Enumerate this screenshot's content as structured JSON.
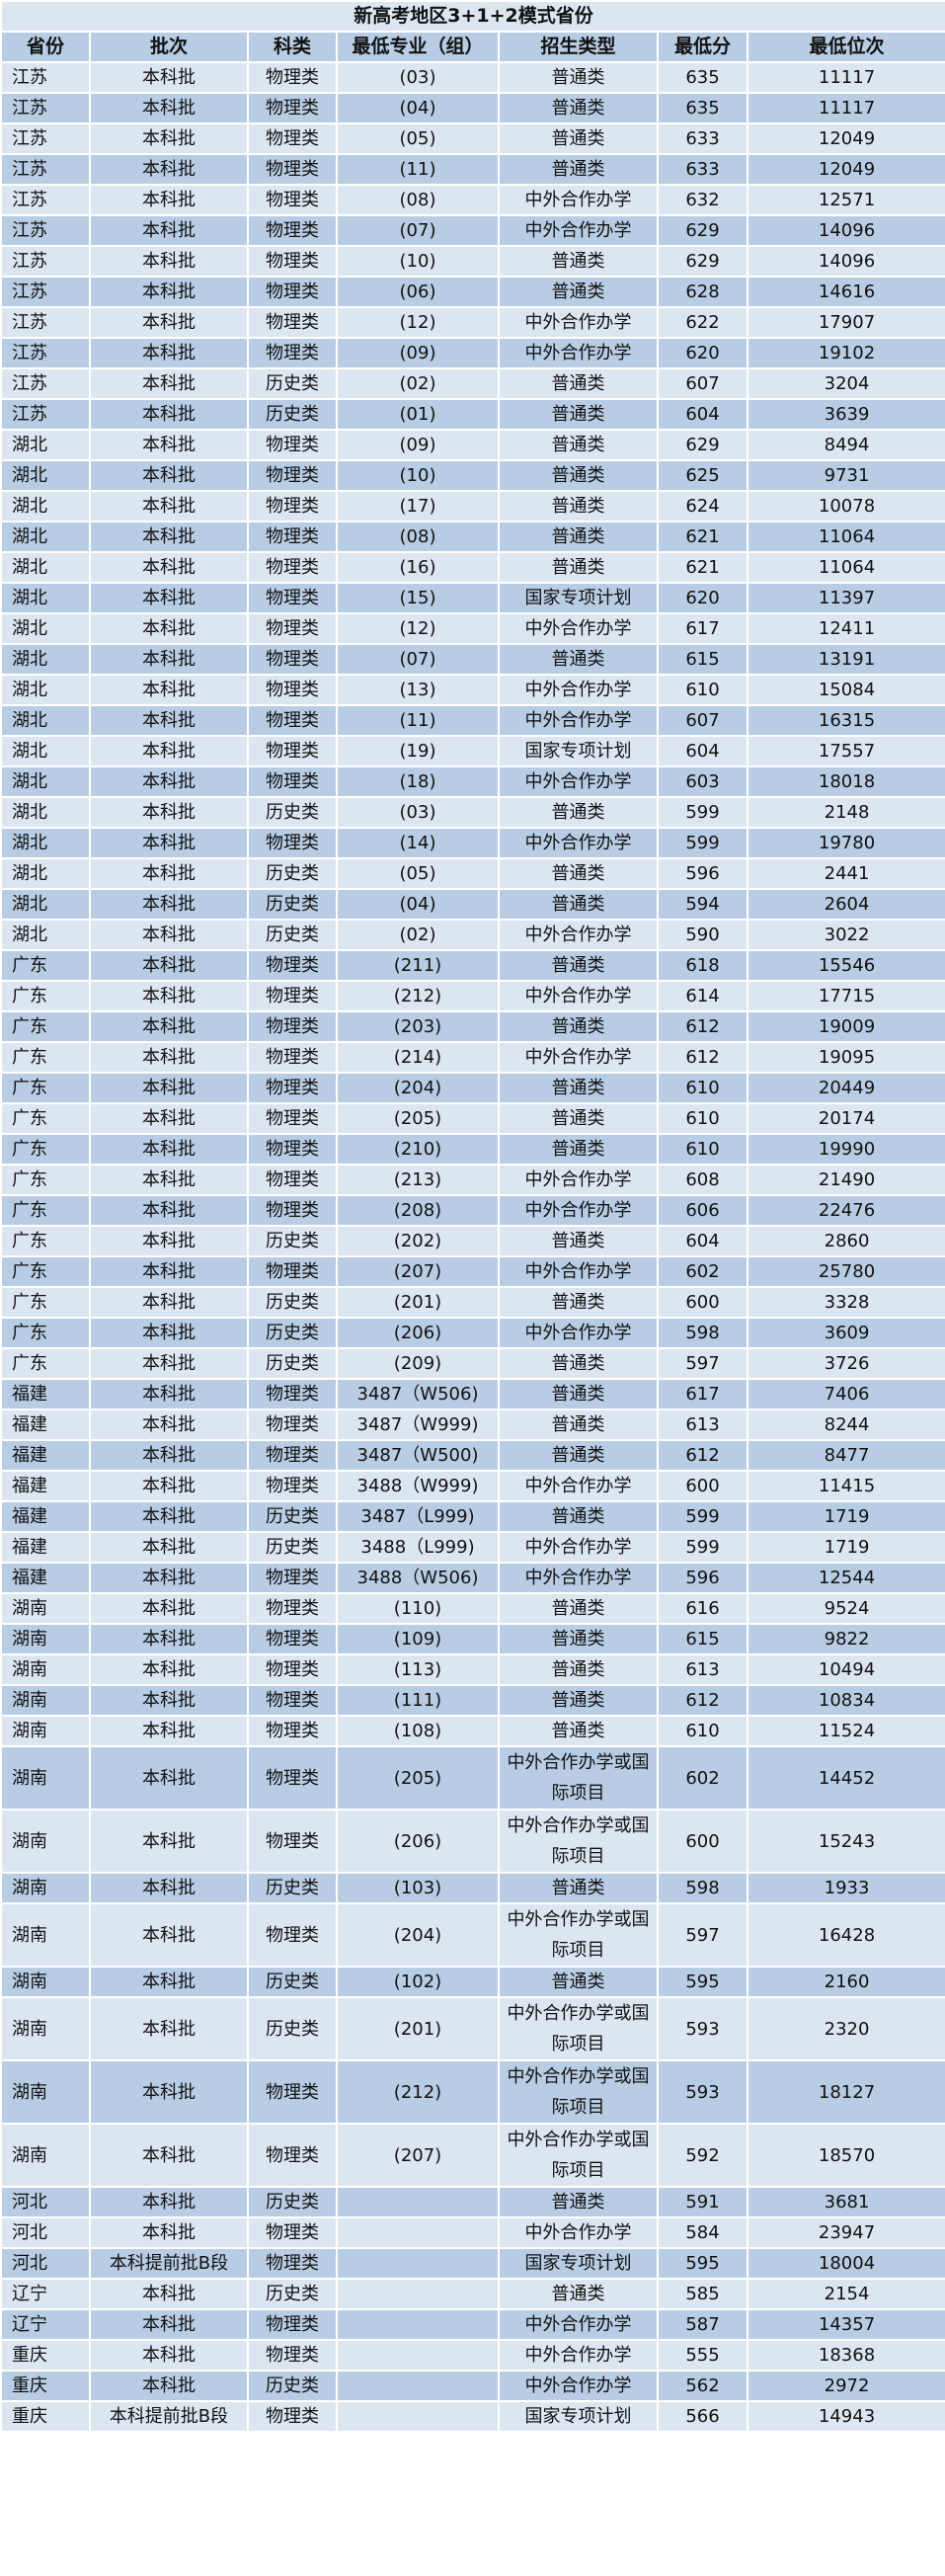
{
  "title": "新高考地区3+1+2模式省份",
  "colors": {
    "light_row": "#dce6f1",
    "dark_row": "#b8cce4"
  },
  "columns": [
    "省份",
    "批次",
    "科类",
    "最低专业（组）",
    "招生类型",
    "最低分",
    "最低位次"
  ],
  "rows": [
    [
      "江苏",
      "本科批",
      "物理类",
      "(03)",
      "普通类",
      "635",
      "11117"
    ],
    [
      "江苏",
      "本科批",
      "物理类",
      "(04)",
      "普通类",
      "635",
      "11117"
    ],
    [
      "江苏",
      "本科批",
      "物理类",
      "(05)",
      "普通类",
      "633",
      "12049"
    ],
    [
      "江苏",
      "本科批",
      "物理类",
      "(11)",
      "普通类",
      "633",
      "12049"
    ],
    [
      "江苏",
      "本科批",
      "物理类",
      "(08)",
      "中外合作办学",
      "632",
      "12571"
    ],
    [
      "江苏",
      "本科批",
      "物理类",
      "(07)",
      "中外合作办学",
      "629",
      "14096"
    ],
    [
      "江苏",
      "本科批",
      "物理类",
      "(10)",
      "普通类",
      "629",
      "14096"
    ],
    [
      "江苏",
      "本科批",
      "物理类",
      "(06)",
      "普通类",
      "628",
      "14616"
    ],
    [
      "江苏",
      "本科批",
      "物理类",
      "(12)",
      "中外合作办学",
      "622",
      "17907"
    ],
    [
      "江苏",
      "本科批",
      "物理类",
      "(09)",
      "中外合作办学",
      "620",
      "19102"
    ],
    [
      "江苏",
      "本科批",
      "历史类",
      "(02)",
      "普通类",
      "607",
      "3204"
    ],
    [
      "江苏",
      "本科批",
      "历史类",
      "(01)",
      "普通类",
      "604",
      "3639"
    ],
    [
      "湖北",
      "本科批",
      "物理类",
      "(09)",
      "普通类",
      "629",
      "8494"
    ],
    [
      "湖北",
      "本科批",
      "物理类",
      "(10)",
      "普通类",
      "625",
      "9731"
    ],
    [
      "湖北",
      "本科批",
      "物理类",
      "(17)",
      "普通类",
      "624",
      "10078"
    ],
    [
      "湖北",
      "本科批",
      "物理类",
      "(08)",
      "普通类",
      "621",
      "11064"
    ],
    [
      "湖北",
      "本科批",
      "物理类",
      "(16)",
      "普通类",
      "621",
      "11064"
    ],
    [
      "湖北",
      "本科批",
      "物理类",
      "(15)",
      "国家专项计划",
      "620",
      "11397"
    ],
    [
      "湖北",
      "本科批",
      "物理类",
      "(12)",
      "中外合作办学",
      "617",
      "12411"
    ],
    [
      "湖北",
      "本科批",
      "物理类",
      "(07)",
      "普通类",
      "615",
      "13191"
    ],
    [
      "湖北",
      "本科批",
      "物理类",
      "(13)",
      "中外合作办学",
      "610",
      "15084"
    ],
    [
      "湖北",
      "本科批",
      "物理类",
      "(11)",
      "中外合作办学",
      "607",
      "16315"
    ],
    [
      "湖北",
      "本科批",
      "物理类",
      "(19)",
      "国家专项计划",
      "604",
      "17557"
    ],
    [
      "湖北",
      "本科批",
      "物理类",
      "(18)",
      "中外合作办学",
      "603",
      "18018"
    ],
    [
      "湖北",
      "本科批",
      "历史类",
      "(03)",
      "普通类",
      "599",
      "2148"
    ],
    [
      "湖北",
      "本科批",
      "物理类",
      "(14)",
      "中外合作办学",
      "599",
      "19780"
    ],
    [
      "湖北",
      "本科批",
      "历史类",
      "(05)",
      "普通类",
      "596",
      "2441"
    ],
    [
      "湖北",
      "本科批",
      "历史类",
      "(04)",
      "普通类",
      "594",
      "2604"
    ],
    [
      "湖北",
      "本科批",
      "历史类",
      "(02)",
      "中外合作办学",
      "590",
      "3022"
    ],
    [
      "广东",
      "本科批",
      "物理类",
      "(211)",
      "普通类",
      "618",
      "15546"
    ],
    [
      "广东",
      "本科批",
      "物理类",
      "(212)",
      "中外合作办学",
      "614",
      "17715"
    ],
    [
      "广东",
      "本科批",
      "物理类",
      "(203)",
      "普通类",
      "612",
      "19009"
    ],
    [
      "广东",
      "本科批",
      "物理类",
      "(214)",
      "中外合作办学",
      "612",
      "19095"
    ],
    [
      "广东",
      "本科批",
      "物理类",
      "(204)",
      "普通类",
      "610",
      "20449"
    ],
    [
      "广东",
      "本科批",
      "物理类",
      "(205)",
      "普通类",
      "610",
      "20174"
    ],
    [
      "广东",
      "本科批",
      "物理类",
      "(210)",
      "普通类",
      "610",
      "19990"
    ],
    [
      "广东",
      "本科批",
      "物理类",
      "(213)",
      "中外合作办学",
      "608",
      "21490"
    ],
    [
      "广东",
      "本科批",
      "物理类",
      "(208)",
      "中外合作办学",
      "606",
      "22476"
    ],
    [
      "广东",
      "本科批",
      "历史类",
      "(202)",
      "普通类",
      "604",
      "2860"
    ],
    [
      "广东",
      "本科批",
      "物理类",
      "(207)",
      "中外合作办学",
      "602",
      "25780"
    ],
    [
      "广东",
      "本科批",
      "历史类",
      "(201)",
      "普通类",
      "600",
      "3328"
    ],
    [
      "广东",
      "本科批",
      "历史类",
      "(206)",
      "中外合作办学",
      "598",
      "3609"
    ],
    [
      "广东",
      "本科批",
      "历史类",
      "(209)",
      "普通类",
      "597",
      "3726"
    ],
    [
      "福建",
      "本科批",
      "物理类",
      "3487（W506)",
      "普通类",
      "617",
      "7406"
    ],
    [
      "福建",
      "本科批",
      "物理类",
      "3487（W999)",
      "普通类",
      "613",
      "8244"
    ],
    [
      "福建",
      "本科批",
      "物理类",
      "3487（W500)",
      "普通类",
      "612",
      "8477"
    ],
    [
      "福建",
      "本科批",
      "物理类",
      "3488（W999)",
      "中外合作办学",
      "600",
      "11415"
    ],
    [
      "福建",
      "本科批",
      "历史类",
      "3487（L999)",
      "普通类",
      "599",
      "1719"
    ],
    [
      "福建",
      "本科批",
      "历史类",
      "3488（L999)",
      "中外合作办学",
      "599",
      "1719"
    ],
    [
      "福建",
      "本科批",
      "物理类",
      "3488（W506)",
      "中外合作办学",
      "596",
      "12544"
    ],
    [
      "湖南",
      "本科批",
      "物理类",
      "(110)",
      "普通类",
      "616",
      "9524"
    ],
    [
      "湖南",
      "本科批",
      "物理类",
      "(109)",
      "普通类",
      "615",
      "9822"
    ],
    [
      "湖南",
      "本科批",
      "物理类",
      "(113)",
      "普通类",
      "613",
      "10494"
    ],
    [
      "湖南",
      "本科批",
      "物理类",
      "(111)",
      "普通类",
      "612",
      "10834"
    ],
    [
      "湖南",
      "本科批",
      "物理类",
      "(108)",
      "普通类",
      "610",
      "11524"
    ],
    [
      "湖南",
      "本科批",
      "物理类",
      "(205)",
      "中外合作办学或国际项目",
      "602",
      "14452"
    ],
    [
      "湖南",
      "本科批",
      "物理类",
      "(206)",
      "中外合作办学或国际项目",
      "600",
      "15243"
    ],
    [
      "湖南",
      "本科批",
      "历史类",
      "(103)",
      "普通类",
      "598",
      "1933"
    ],
    [
      "湖南",
      "本科批",
      "物理类",
      "(204)",
      "中外合作办学或国际项目",
      "597",
      "16428"
    ],
    [
      "湖南",
      "本科批",
      "历史类",
      "(102)",
      "普通类",
      "595",
      "2160"
    ],
    [
      "湖南",
      "本科批",
      "历史类",
      "(201)",
      "中外合作办学或国际项目",
      "593",
      "2320"
    ],
    [
      "湖南",
      "本科批",
      "物理类",
      "(212)",
      "中外合作办学或国际项目",
      "593",
      "18127"
    ],
    [
      "湖南",
      "本科批",
      "物理类",
      "(207)",
      "中外合作办学或国际项目",
      "592",
      "18570"
    ],
    [
      "河北",
      "本科批",
      "历史类",
      "",
      "普通类",
      "591",
      "3681"
    ],
    [
      "河北",
      "本科批",
      "物理类",
      "",
      "中外合作办学",
      "584",
      "23947"
    ],
    [
      "河北",
      "本科提前批B段",
      "物理类",
      "",
      "国家专项计划",
      "595",
      "18004"
    ],
    [
      "辽宁",
      "本科批",
      "历史类",
      "",
      "普通类",
      "585",
      "2154"
    ],
    [
      "辽宁",
      "本科批",
      "物理类",
      "",
      "中外合作办学",
      "587",
      "14357"
    ],
    [
      "重庆",
      "本科批",
      "物理类",
      "",
      "中外合作办学",
      "555",
      "18368"
    ],
    [
      "重庆",
      "本科批",
      "历史类",
      "",
      "中外合作办学",
      "562",
      "2972"
    ],
    [
      "重庆",
      "本科提前批B段",
      "物理类",
      "",
      "国家专项计划",
      "566",
      "14943"
    ]
  ]
}
